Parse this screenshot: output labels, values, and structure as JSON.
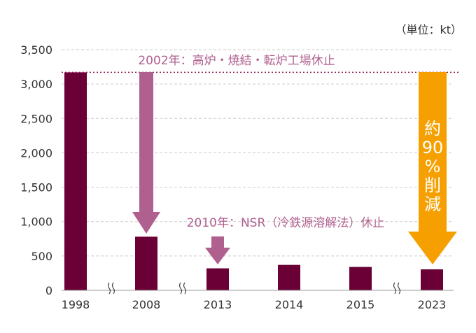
{
  "chart_data": {
    "type": "bar",
    "unit_label": "（単位：kt）",
    "categories": [
      "1998",
      "2008",
      "2013",
      "2014",
      "2015",
      "2023"
    ],
    "values": [
      3170,
      780,
      320,
      370,
      340,
      305
    ],
    "ylim": [
      0,
      3500
    ],
    "yticks": [
      "0",
      "500",
      "1,000",
      "1,500",
      "2,000",
      "2,500",
      "3,000",
      "3,500"
    ],
    "grid": true,
    "reference_value": 3170,
    "annotations": {
      "a2002": "2002年：高炉・焼結・転炉工場休止",
      "a2010": "2010年：NSR（冷鉄源溶解法）休止",
      "reduction": "約90%削減"
    },
    "colors": {
      "bar": "#6a0035",
      "arrow": "#b0608f",
      "reduction_arrow": "#f5a000",
      "grid": "#cccccc",
      "ref_line": "#8a1a50"
    }
  }
}
